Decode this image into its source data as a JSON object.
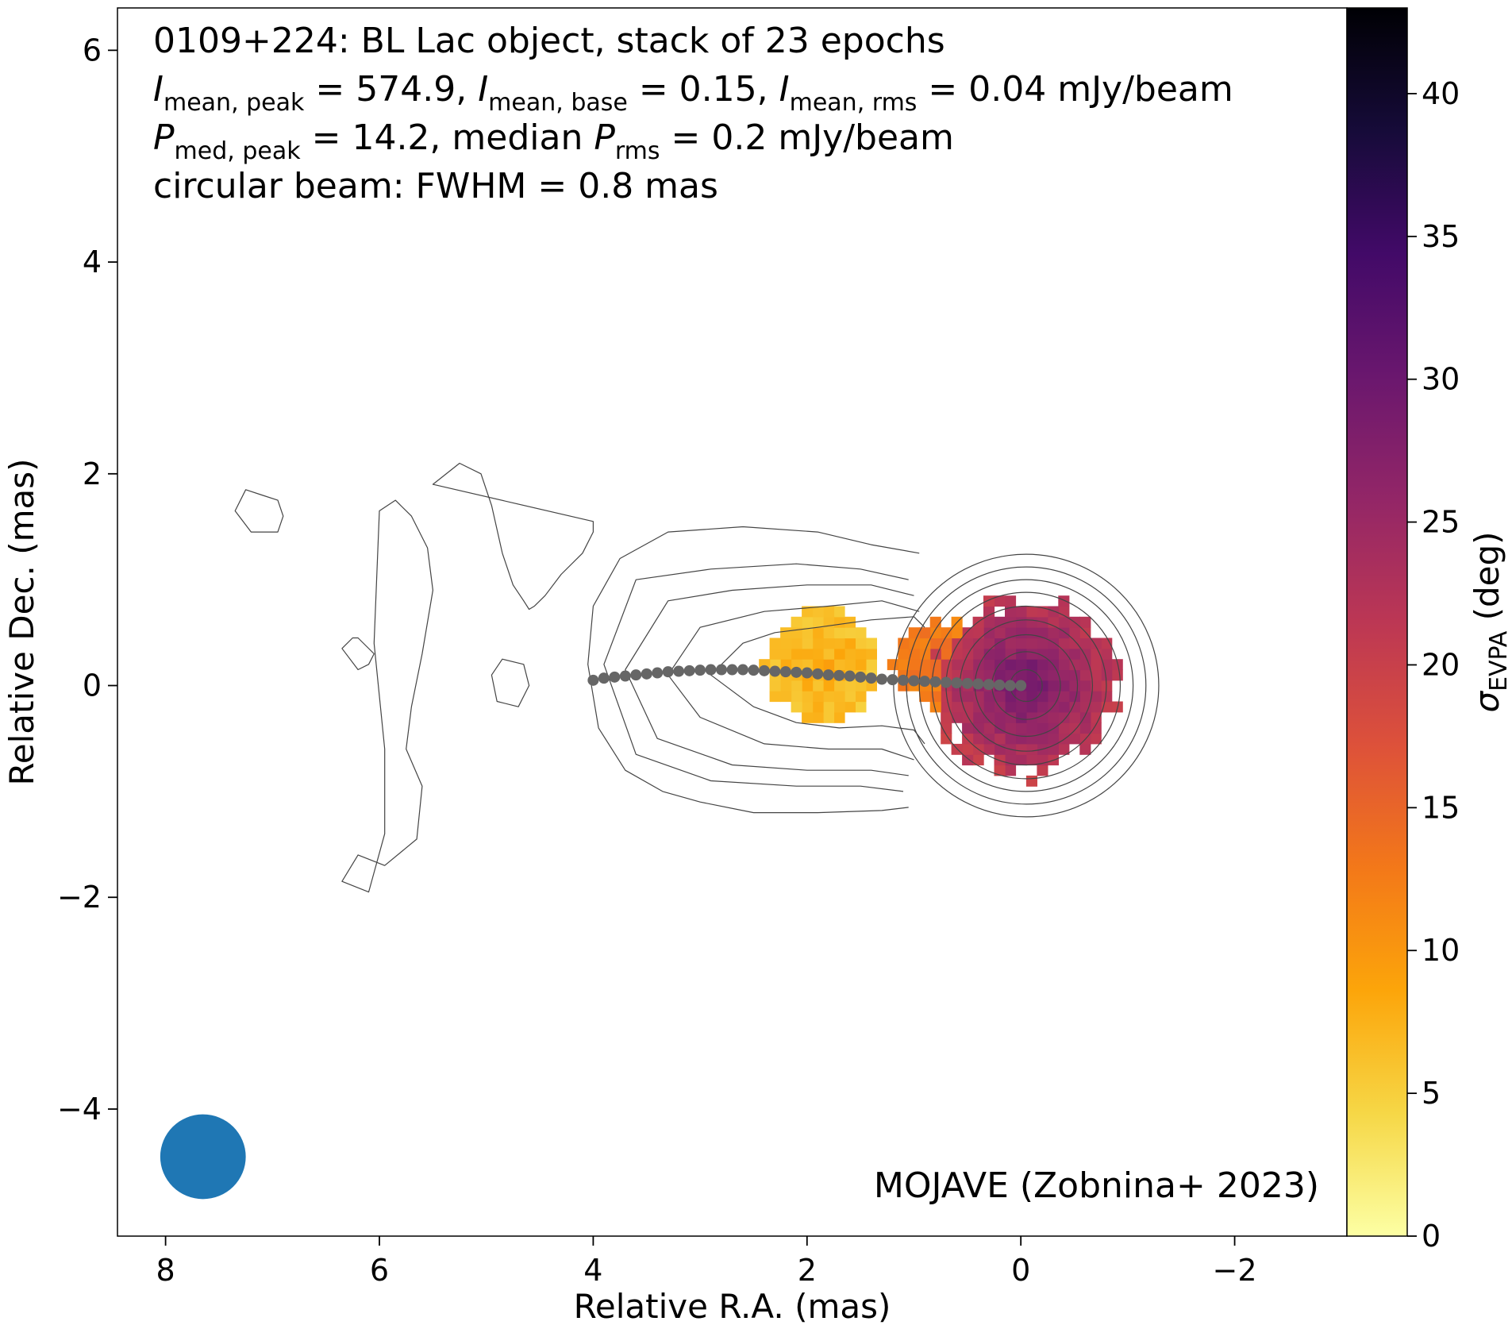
{
  "chart_data": {
    "type": "heatmap",
    "title_lines": [
      [
        {
          "t": "0109+224: BL Lac object, stack of 23 epochs"
        }
      ],
      [
        {
          "t": "I",
          "i": true
        },
        {
          "t": "mean, peak",
          "sub": true
        },
        {
          "t": " = 574.9, "
        },
        {
          "t": "I",
          "i": true
        },
        {
          "t": "mean, base",
          "sub": true
        },
        {
          "t": " = 0.15, "
        },
        {
          "t": "I",
          "i": true
        },
        {
          "t": "mean, rms",
          "sub": true
        },
        {
          "t": " = 0.04 mJy/beam"
        }
      ],
      [
        {
          "t": "P",
          "i": true
        },
        {
          "t": "med, peak",
          "sub": true
        },
        {
          "t": " = 14.2, median "
        },
        {
          "t": "P",
          "i": true
        },
        {
          "t": "rms",
          "sub": true
        },
        {
          "t": " = 0.2 mJy/beam"
        }
      ],
      [
        {
          "t": "circular beam: FWHM = 0.8 mas"
        }
      ]
    ],
    "credit": "MOJAVE (Zobnina+ 2023)",
    "xlabel": "Relative R.A. (mas)",
    "ylabel": "Relative Dec. (mas)",
    "xlim": [
      8.45,
      -3.05
    ],
    "ylim": [
      -5.2,
      6.4
    ],
    "xticks": [
      8,
      6,
      4,
      2,
      0,
      -2
    ],
    "xtick_labels": [
      "8",
      "6",
      "4",
      "2",
      "0",
      "−2"
    ],
    "yticks": [
      6,
      4,
      2,
      0,
      -2,
      -4
    ],
    "ytick_labels": [
      "6",
      "4",
      "2",
      "0",
      "−2",
      "−4"
    ],
    "colorbar": {
      "label_main": "σ",
      "label_sub": "EVPA",
      "label_tail": " (deg)",
      "range": [
        0,
        43
      ],
      "ticks": [
        0,
        5,
        10,
        15,
        20,
        25,
        30,
        35,
        40
      ],
      "tick_labels": [
        "0",
        "5",
        "10",
        "15",
        "20",
        "25",
        "30",
        "35",
        "40"
      ],
      "colormap": "inferno_r",
      "stops": [
        "#fcffa4",
        "#f6d746",
        "#fca50a",
        "#f37819",
        "#dd513a",
        "#bc3754",
        "#932667",
        "#6a176e",
        "#420a68",
        "#160b39",
        "#000004"
      ]
    },
    "sigma_evpa_regions": [
      {
        "name": "core",
        "center": [
          -0.05,
          0.0
        ],
        "radius": 0.85,
        "value_center": 30,
        "value_edge": 21
      },
      {
        "name": "jet-inner",
        "center": [
          0.8,
          0.25
        ],
        "radius": 0.42,
        "value_center": 14,
        "value_edge": 12
      },
      {
        "name": "jet-knot",
        "center": [
          1.85,
          0.2
        ],
        "radius": 0.55,
        "value_center": 8,
        "value_edge": 6
      }
    ],
    "ridge_line": {
      "x": [
        4.0,
        3.9,
        3.8,
        3.7,
        3.6,
        3.5,
        3.4,
        3.3,
        3.2,
        3.1,
        3.0,
        2.9,
        2.8,
        2.7,
        2.6,
        2.5,
        2.4,
        2.3,
        2.2,
        2.1,
        2.0,
        1.9,
        1.8,
        1.7,
        1.6,
        1.5,
        1.4,
        1.3,
        1.2,
        1.1,
        1.0,
        0.9,
        0.8,
        0.7,
        0.6,
        0.5,
        0.4,
        0.3,
        0.2,
        0.1,
        0.0
      ],
      "y": [
        0.05,
        0.07,
        0.08,
        0.09,
        0.1,
        0.11,
        0.12,
        0.13,
        0.135,
        0.14,
        0.145,
        0.15,
        0.15,
        0.15,
        0.15,
        0.145,
        0.14,
        0.135,
        0.13,
        0.125,
        0.12,
        0.11,
        0.1,
        0.095,
        0.09,
        0.08,
        0.07,
        0.06,
        0.055,
        0.05,
        0.045,
        0.04,
        0.035,
        0.03,
        0.025,
        0.02,
        0.015,
        0.01,
        0.005,
        0.0,
        0.0
      ],
      "color": "#666666"
    },
    "contours": {
      "core": {
        "center": [
          -0.05,
          0.0
        ],
        "radii": [
          0.15,
          0.32,
          0.48,
          0.62,
          0.75,
          0.88,
          1.0,
          1.12,
          1.24
        ]
      },
      "jet_levels": [
        {
          "x": [
            0.9,
            1.0,
            1.4,
            1.9,
            2.3,
            2.6,
            2.9,
            2.5,
            2.1,
            1.7,
            1.3,
            1.0,
            0.9
          ],
          "y": [
            0.55,
            0.65,
            0.62,
            0.55,
            0.5,
            0.4,
            0.1,
            -0.2,
            -0.35,
            -0.4,
            -0.38,
            -0.42,
            -0.55
          ]
        },
        {
          "x": [
            0.95,
            1.3,
            1.8,
            2.4,
            3.0,
            3.3,
            3.0,
            2.4,
            1.8,
            1.3,
            1.0
          ],
          "y": [
            0.7,
            0.8,
            0.75,
            0.7,
            0.55,
            0.1,
            -0.3,
            -0.55,
            -0.6,
            -0.6,
            -0.7
          ]
        },
        {
          "x": [
            1.0,
            1.4,
            2.0,
            2.7,
            3.3,
            3.7,
            3.4,
            2.7,
            2.0,
            1.4,
            1.05
          ],
          "y": [
            0.85,
            0.95,
            0.95,
            0.9,
            0.8,
            0.15,
            -0.5,
            -0.75,
            -0.8,
            -0.8,
            -0.85
          ]
        },
        {
          "x": [
            1.05,
            1.5,
            2.1,
            2.9,
            3.6,
            3.9,
            3.6,
            2.9,
            2.1,
            1.5,
            1.1
          ],
          "y": [
            1.0,
            1.1,
            1.15,
            1.1,
            1.0,
            0.2,
            -0.65,
            -0.9,
            -0.95,
            -0.95,
            -1.0
          ]
        }
      ],
      "outer": {
        "x": [
          0.95,
          1.4,
          1.9,
          2.6,
          3.3,
          3.75,
          4.0,
          4.05,
          3.95,
          3.7,
          3.35,
          3.0,
          2.5,
          1.9,
          1.3,
          1.05
        ],
        "y": [
          1.25,
          1.33,
          1.45,
          1.5,
          1.45,
          1.2,
          0.75,
          0.2,
          -0.4,
          -0.8,
          -1.0,
          -1.1,
          -1.2,
          -1.2,
          -1.18,
          -1.15
        ]
      },
      "faint": [
        {
          "x": [
            5.5,
            5.25,
            5.05,
            4.95,
            4.85,
            4.75,
            4.65,
            4.6,
            4.55,
            4.45,
            4.3,
            4.1,
            4.0,
            4.0
          ],
          "y": [
            1.9,
            2.1,
            2.0,
            1.7,
            1.25,
            0.95,
            0.8,
            0.72,
            0.75,
            0.85,
            1.05,
            1.25,
            1.45,
            1.55
          ]
        },
        {
          "x": [
            6.0,
            5.85,
            5.7,
            5.55,
            5.5,
            5.6,
            5.7,
            5.75,
            5.6,
            5.65,
            5.95,
            6.2,
            6.35,
            6.1,
            5.95,
            5.95,
            6.05
          ],
          "y": [
            1.65,
            1.75,
            1.6,
            1.3,
            0.9,
            0.3,
            -0.2,
            -0.6,
            -0.95,
            -1.45,
            -1.7,
            -1.6,
            -1.85,
            -1.95,
            -1.4,
            -0.6,
            0.4
          ]
        },
        {
          "x": [
            7.1,
            7.25,
            7.35,
            7.2,
            6.95,
            6.9,
            6.95,
            7.1
          ],
          "y": [
            1.8,
            1.85,
            1.65,
            1.45,
            1.45,
            1.6,
            1.75,
            1.8
          ]
        },
        {
          "x": [
            6.25,
            6.35,
            6.2,
            6.1,
            6.05,
            6.2,
            6.25
          ],
          "y": [
            0.45,
            0.35,
            0.15,
            0.2,
            0.3,
            0.45,
            0.45
          ]
        },
        {
          "x": [
            4.85,
            4.95,
            4.9,
            4.7,
            4.6,
            4.65,
            4.85
          ],
          "y": [
            0.25,
            0.1,
            -0.15,
            -0.2,
            0.0,
            0.2,
            0.25
          ]
        }
      ]
    },
    "beam": {
      "center": [
        7.65,
        -4.45
      ],
      "fwhm": 0.8,
      "color": "#1f77b4"
    }
  }
}
